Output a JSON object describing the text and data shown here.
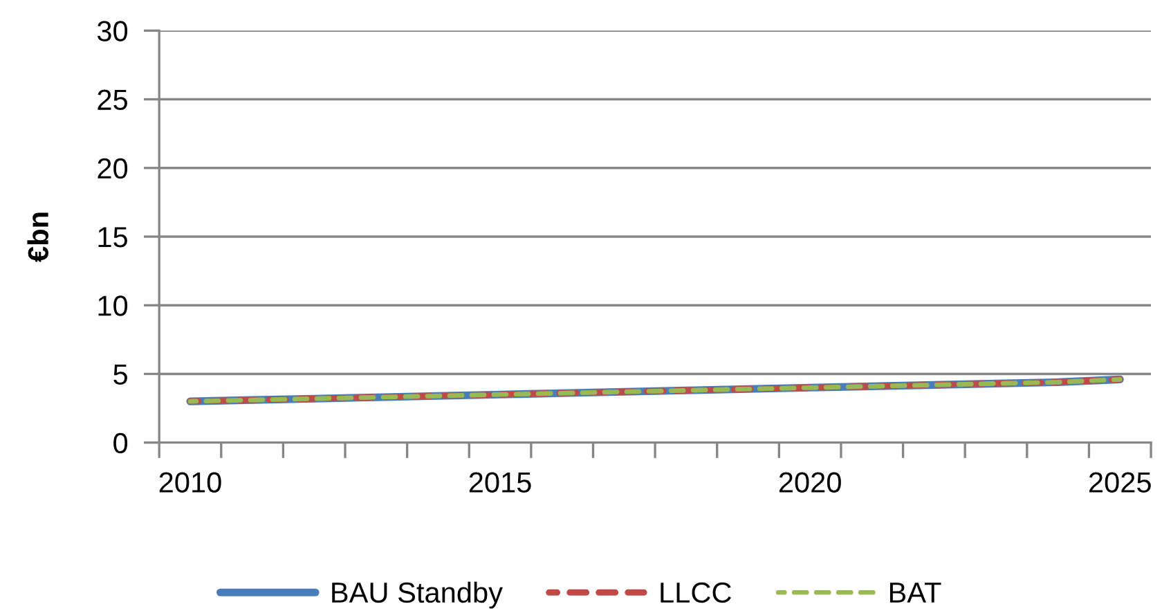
{
  "chart_data": {
    "type": "line",
    "ylabel": "€bn",
    "categories": [
      "2010",
      null,
      null,
      null,
      null,
      "2015",
      null,
      null,
      null,
      null,
      "2020",
      null,
      null,
      null,
      null,
      "2025"
    ],
    "series": [
      {
        "name": "BAU Standby",
        "color": "#4a7ebb",
        "line_style": "solid",
        "values": [
          3.0,
          3.1,
          3.2,
          3.3,
          3.4,
          3.5,
          3.6,
          3.7,
          3.8,
          3.9,
          4.0,
          4.1,
          4.2,
          4.3,
          4.4,
          4.6
        ]
      },
      {
        "name": "LLCC",
        "color": "#be4b48",
        "line_style": "dashed",
        "values": [
          3.0,
          3.1,
          3.2,
          3.3,
          3.4,
          3.5,
          3.6,
          3.7,
          3.8,
          3.9,
          4.0,
          4.1,
          4.2,
          4.3,
          4.4,
          4.6
        ]
      },
      {
        "name": "BAT",
        "color": "#98b954",
        "line_style": "dashed",
        "values": [
          3.0,
          3.1,
          3.2,
          3.3,
          3.4,
          3.5,
          3.6,
          3.7,
          3.8,
          3.9,
          4.0,
          4.1,
          4.2,
          4.3,
          4.4,
          4.6
        ]
      }
    ],
    "ylim": [
      0,
      30
    ],
    "yticks": [
      0,
      5,
      10,
      15,
      20,
      25,
      30
    ],
    "grid": "y",
    "legend": "bottom"
  }
}
